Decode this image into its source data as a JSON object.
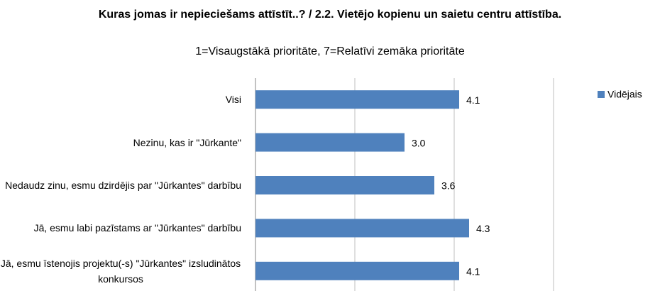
{
  "chart_data": {
    "type": "bar",
    "orientation": "horizontal",
    "title": "Kuras jomas ir nepieciešams attīstīt..? / 2.2. Vietējo kopienu un saietu centru attīstība.",
    "subtitle": "1=Visaugstākā prioritāte, 7=Relatīvi zemāka prioritāte",
    "categories": [
      "Visi",
      "Nezinu, kas ir \"Jūrkante\"",
      "Nedaudz zinu, esmu dzirdējis par \"Jūrkantes\" darbību",
      "Jā, esmu labi pazīstams ar \"Jūrkantes\" darbību",
      "Jā, esmu īstenojis projektu(-s) \"Jūrkantes\" izsludinātos konkursos"
    ],
    "series": [
      {
        "name": "Vidējais",
        "color": "#4f81bd",
        "values": [
          4.1,
          3.0,
          3.6,
          4.3,
          4.1
        ],
        "value_labels": [
          "4.1",
          "3.0",
          "3.6",
          "4.3",
          "4.1"
        ]
      }
    ],
    "xlim": [
      0,
      6
    ],
    "xticks": [
      0,
      2,
      4,
      6
    ],
    "grid": true,
    "legend": "right"
  }
}
